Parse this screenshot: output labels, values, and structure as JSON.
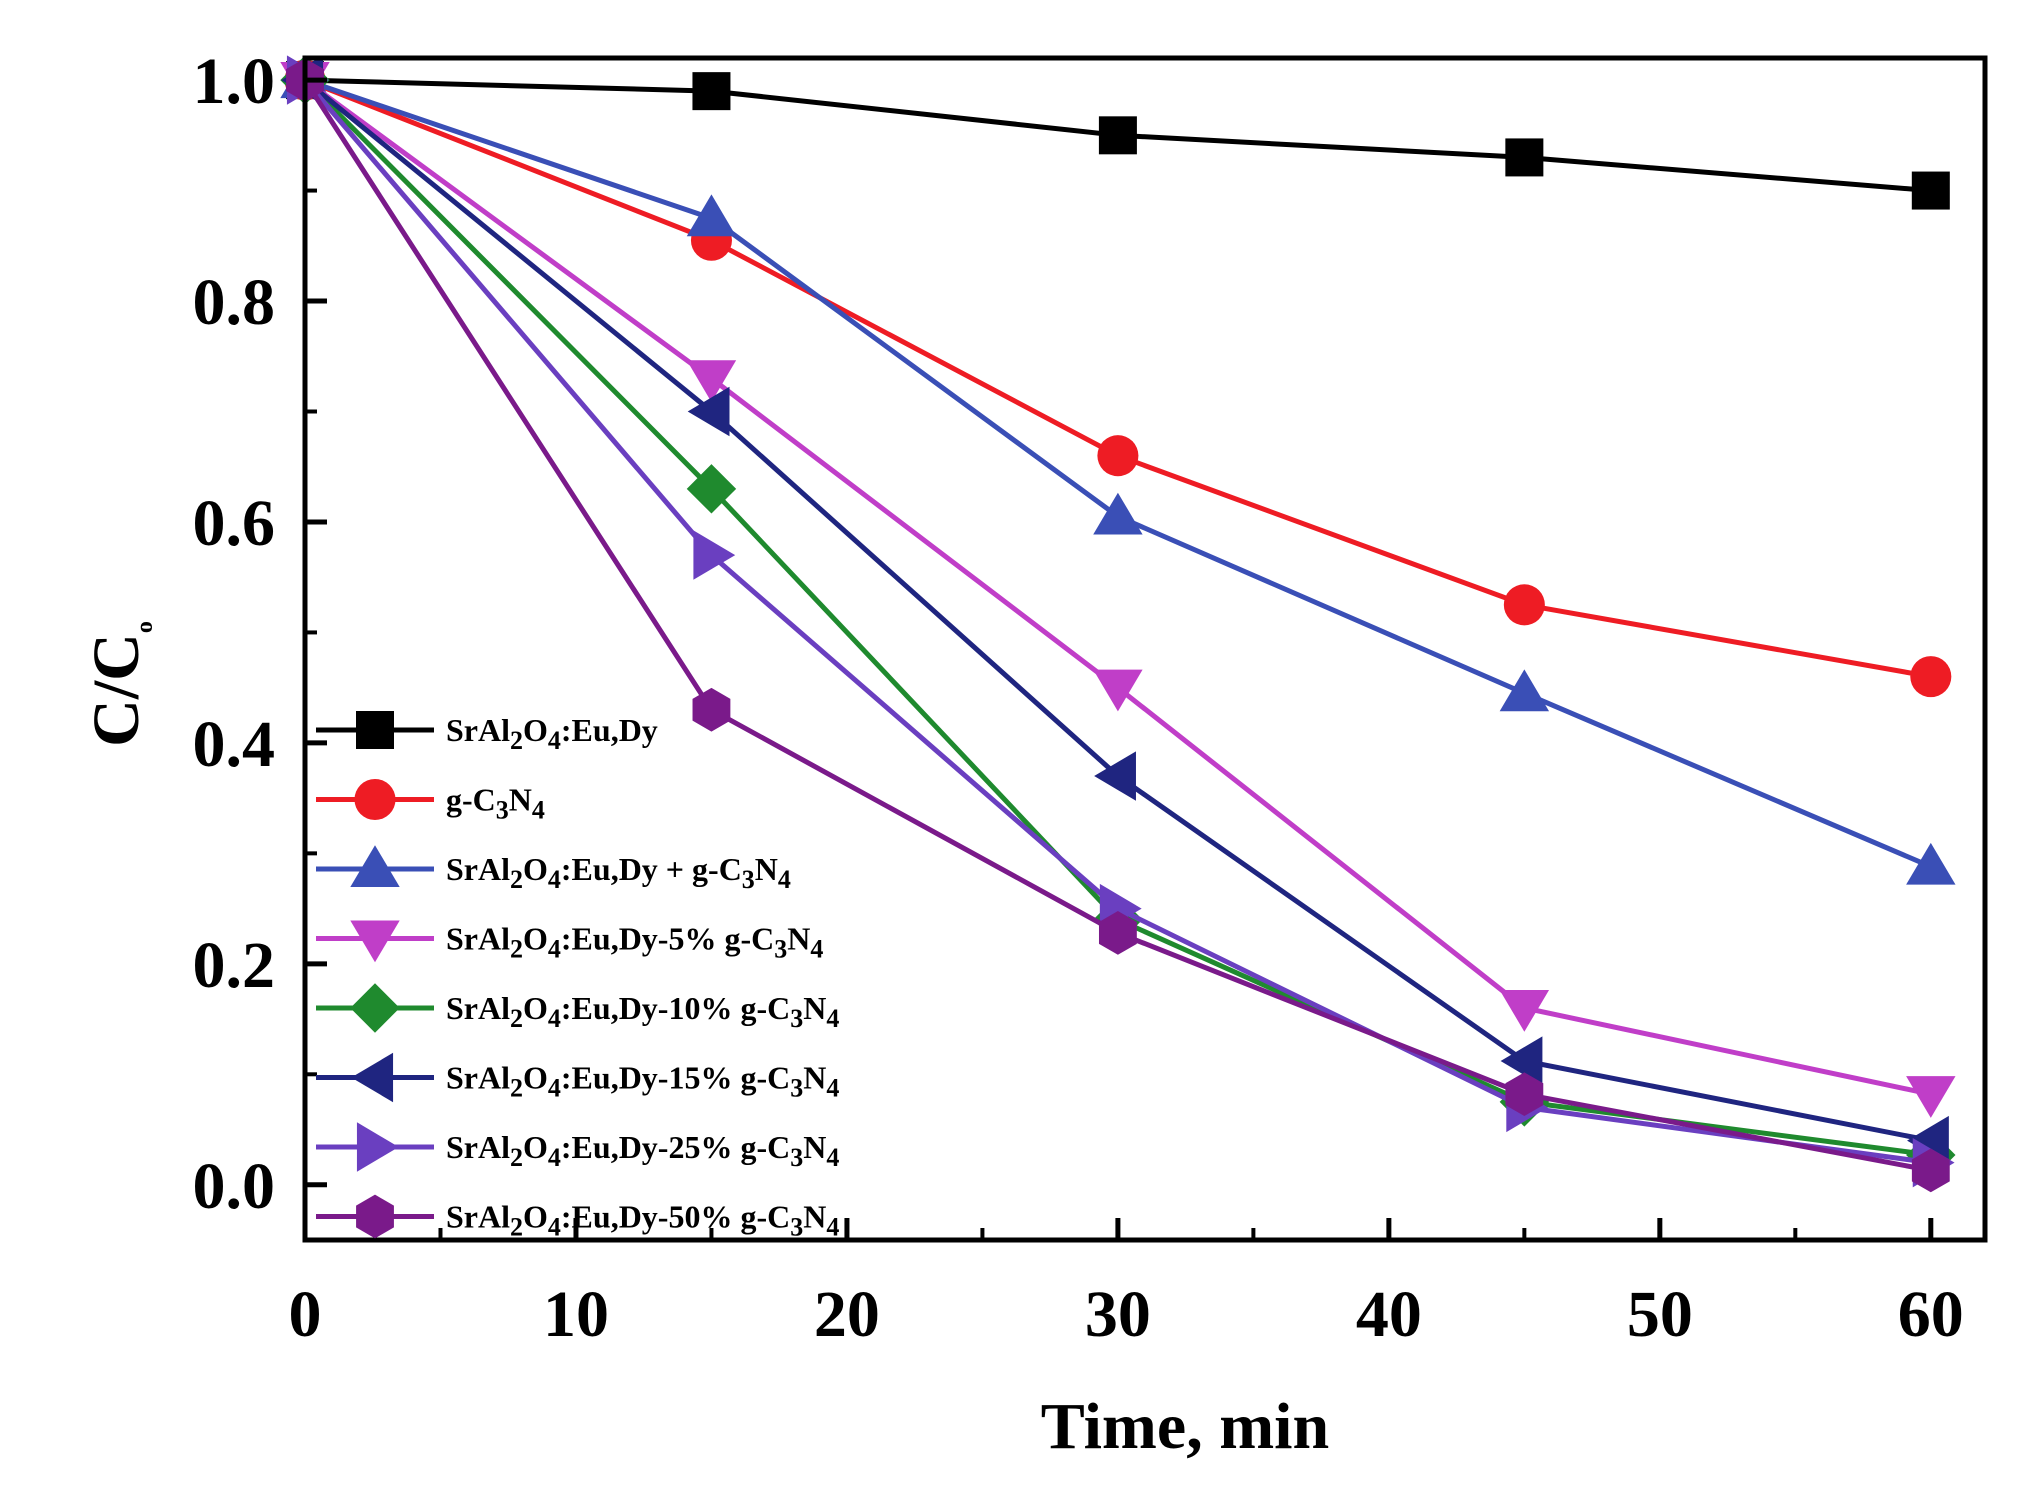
{
  "chart_data": {
    "type": "line",
    "title": "",
    "xlabel": "Time, min",
    "ylabel": "C/C0",
    "ylabel_main": "C/C",
    "ylabel_sub": "o",
    "xlim": [
      0,
      62
    ],
    "ylim": [
      -0.05,
      1.02
    ],
    "xticks": [
      0,
      10,
      20,
      30,
      40,
      50,
      60
    ],
    "xtick_labels": [
      "0",
      "10",
      "20",
      "30",
      "40",
      "50",
      "60"
    ],
    "yticks": [
      0.0,
      0.2,
      0.4,
      0.6,
      0.8,
      1.0
    ],
    "ytick_labels": [
      "0.0",
      "0.2",
      "0.4",
      "0.6",
      "0.8",
      "1.0"
    ],
    "grid": false,
    "legend_position": "lower-left",
    "x": [
      0,
      15,
      30,
      45,
      60
    ],
    "series": [
      {
        "name": "SrAl2O4:Eu,Dy",
        "label_parts": [
          [
            "SrAl",
            ""
          ],
          [
            "2",
            "sub"
          ],
          [
            "O",
            ""
          ],
          [
            "4",
            "sub"
          ],
          [
            ":Eu,Dy",
            ""
          ]
        ],
        "color": "#000000",
        "marker": "square",
        "values": [
          1.0,
          0.99,
          0.95,
          0.93,
          0.9
        ]
      },
      {
        "name": "g-C3N4",
        "label_parts": [
          [
            "g-C",
            ""
          ],
          [
            "3",
            "sub"
          ],
          [
            "N",
            ""
          ],
          [
            "4",
            "sub"
          ]
        ],
        "color": "#ee1c24",
        "marker": "circle",
        "values": [
          1.0,
          0.855,
          0.66,
          0.525,
          0.46
        ]
      },
      {
        "name": "SrAl2O4:Eu,Dy + g-C3N4",
        "label_parts": [
          [
            "SrAl",
            ""
          ],
          [
            "2",
            "sub"
          ],
          [
            "O",
            ""
          ],
          [
            "4",
            "sub"
          ],
          [
            ":Eu,Dy + g-C",
            ""
          ],
          [
            "3",
            "sub"
          ],
          [
            "N",
            ""
          ],
          [
            "4",
            "sub"
          ]
        ],
        "color": "#3a4fb6",
        "marker": "triangle-up",
        "values": [
          1.0,
          0.875,
          0.605,
          0.445,
          0.288
        ]
      },
      {
        "name": "SrAl2O4:Eu,Dy-5% g-C3N4",
        "label_parts": [
          [
            "SrAl",
            ""
          ],
          [
            "2",
            "sub"
          ],
          [
            "O",
            ""
          ],
          [
            "4",
            "sub"
          ],
          [
            ":Eu,Dy-5% g-C",
            ""
          ],
          [
            "3",
            "sub"
          ],
          [
            "N",
            ""
          ],
          [
            "4",
            "sub"
          ]
        ],
        "color": "#c03ec8",
        "marker": "triangle-down",
        "values": [
          1.0,
          0.73,
          0.45,
          0.16,
          0.082
        ]
      },
      {
        "name": "SrAl2O4:Eu,Dy-10% g-C3N4",
        "label_parts": [
          [
            "SrAl",
            ""
          ],
          [
            "2",
            "sub"
          ],
          [
            "O",
            ""
          ],
          [
            "4",
            "sub"
          ],
          [
            ":Eu,Dy-10% g-C",
            ""
          ],
          [
            "3",
            "sub"
          ],
          [
            "N",
            ""
          ],
          [
            "4",
            "sub"
          ]
        ],
        "color": "#1f8a2e",
        "marker": "diamond",
        "values": [
          1.0,
          0.63,
          0.24,
          0.075,
          0.027
        ]
      },
      {
        "name": "SrAl2O4:Eu,Dy-15% g-C3N4",
        "label_parts": [
          [
            "SrAl",
            ""
          ],
          [
            "2",
            "sub"
          ],
          [
            "O",
            ""
          ],
          [
            "4",
            "sub"
          ],
          [
            ":Eu,Dy-15% g-C",
            ""
          ],
          [
            "3",
            "sub"
          ],
          [
            "N",
            ""
          ],
          [
            "4",
            "sub"
          ]
        ],
        "color": "#1f2580",
        "marker": "triangle-left",
        "values": [
          1.0,
          0.7,
          0.37,
          0.112,
          0.04
        ]
      },
      {
        "name": "SrAl2O4:Eu,Dy-25% g-C3N4",
        "label_parts": [
          [
            "SrAl",
            ""
          ],
          [
            "2",
            "sub"
          ],
          [
            "O",
            ""
          ],
          [
            "4",
            "sub"
          ],
          [
            ":Eu,Dy-25% g-C",
            ""
          ],
          [
            "3",
            "sub"
          ],
          [
            "N",
            ""
          ],
          [
            "4",
            "sub"
          ]
        ],
        "color": "#6a3fc0",
        "marker": "triangle-right",
        "values": [
          1.0,
          0.57,
          0.25,
          0.07,
          0.02
        ]
      },
      {
        "name": "SrAl2O4:Eu,Dy-50% g-C3N4",
        "label_parts": [
          [
            "SrAl",
            ""
          ],
          [
            "2",
            "sub"
          ],
          [
            "O",
            ""
          ],
          [
            "4",
            "sub"
          ],
          [
            ":Eu,Dy-50% g-C",
            ""
          ],
          [
            "3",
            "sub"
          ],
          [
            "N",
            ""
          ],
          [
            "4",
            "sub"
          ]
        ],
        "color": "#7a1a8a",
        "marker": "hexagon",
        "values": [
          1.0,
          0.43,
          0.228,
          0.082,
          0.013
        ]
      }
    ]
  }
}
